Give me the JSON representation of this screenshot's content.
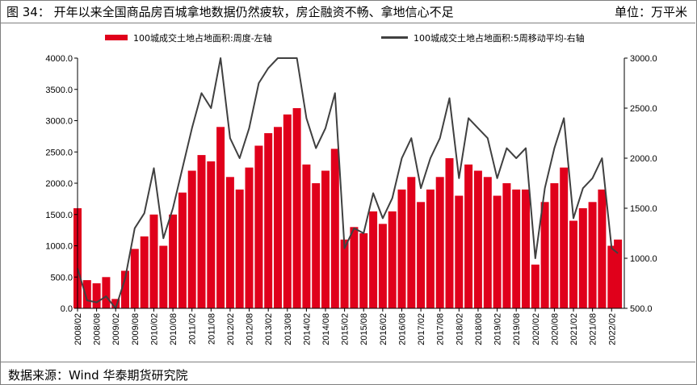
{
  "header": {
    "title": "图 34：  开年以来全国商品房百城拿地数据仍然疲软，房企融资不畅、拿地信心不足",
    "unit": "单位：万平米"
  },
  "footer": {
    "source": "数据来源：Wind   华泰期货研究院"
  },
  "colors": {
    "bar": "#e0001b",
    "line": "#404040"
  },
  "chart_data": {
    "type": "bar",
    "legend_position": "top",
    "grid": false,
    "x_ticks": [
      "2008/02",
      "2008/08",
      "2009/02",
      "2009/08",
      "2010/02",
      "2010/08",
      "2011/02",
      "2011/08",
      "2012/02",
      "2012/08",
      "2013/02",
      "2013/08",
      "2014/02",
      "2014/08",
      "2015/02",
      "2015/08",
      "2016/02",
      "2016/08",
      "2017/02",
      "2017/08",
      "2018/02",
      "2018/08",
      "2019/02",
      "2019/08",
      "2020/02",
      "2020/08",
      "2021/02",
      "2021/08",
      "2022/02"
    ],
    "y_left": {
      "ticks": [
        "0.0",
        "500.0",
        "1000.0",
        "1500.0",
        "2000.0",
        "2500.0",
        "3000.0",
        "3500.0",
        "4000.0"
      ],
      "ylim": [
        0,
        4000
      ]
    },
    "y_right": {
      "ticks": [
        "500.0",
        "1000.0",
        "1500.0",
        "2000.0",
        "2500.0",
        "3000.0"
      ],
      "ylim": [
        500,
        3000
      ]
    },
    "series": [
      {
        "name": "100城成交土地占地面积:周度-左轴",
        "type": "bar",
        "axis": "left",
        "x": [
          "2008/02",
          "2008/05",
          "2008/08",
          "2008/11",
          "2009/02",
          "2009/05",
          "2009/08",
          "2009/11",
          "2010/02",
          "2010/05",
          "2010/08",
          "2010/11",
          "2011/02",
          "2011/05",
          "2011/08",
          "2011/11",
          "2012/02",
          "2012/05",
          "2012/08",
          "2012/11",
          "2013/02",
          "2013/05",
          "2013/08",
          "2013/11",
          "2014/02",
          "2014/05",
          "2014/08",
          "2014/11",
          "2015/02",
          "2015/05",
          "2015/08",
          "2015/11",
          "2016/02",
          "2016/05",
          "2016/08",
          "2016/11",
          "2017/02",
          "2017/05",
          "2017/08",
          "2017/11",
          "2018/02",
          "2018/05",
          "2018/08",
          "2018/11",
          "2019/02",
          "2019/05",
          "2019/08",
          "2019/11",
          "2020/02",
          "2020/05",
          "2020/08",
          "2020/11",
          "2021/02",
          "2021/05",
          "2021/08",
          "2021/11",
          "2022/02",
          "2022/04"
        ],
        "values": [
          1600,
          450,
          400,
          500,
          150,
          600,
          950,
          1150,
          1500,
          1000,
          1500,
          1850,
          2200,
          2450,
          2350,
          2900,
          2100,
          1900,
          2250,
          2600,
          2800,
          2900,
          3100,
          3200,
          2300,
          2000,
          2200,
          2550,
          1100,
          1300,
          1200,
          1550,
          1350,
          1550,
          1900,
          2100,
          1700,
          1900,
          2100,
          2400,
          1800,
          2300,
          2200,
          2100,
          1800,
          2000,
          1900,
          1900,
          700,
          1700,
          2000,
          2250,
          1400,
          1600,
          1700,
          1900,
          1000,
          1100
        ]
      },
      {
        "name": "100城成交土地占地面积:5周移动平均-右轴",
        "type": "line",
        "axis": "right",
        "x": [
          "2008/02",
          "2008/05",
          "2008/08",
          "2008/11",
          "2009/02",
          "2009/05",
          "2009/08",
          "2009/11",
          "2010/02",
          "2010/05",
          "2010/08",
          "2010/11",
          "2011/02",
          "2011/05",
          "2011/08",
          "2011/11",
          "2012/02",
          "2012/05",
          "2012/08",
          "2012/11",
          "2013/02",
          "2013/05",
          "2013/08",
          "2013/11",
          "2014/02",
          "2014/05",
          "2014/08",
          "2014/11",
          "2015/02",
          "2015/05",
          "2015/08",
          "2015/11",
          "2016/02",
          "2016/05",
          "2016/08",
          "2016/11",
          "2017/02",
          "2017/05",
          "2017/08",
          "2017/11",
          "2018/02",
          "2018/05",
          "2018/08",
          "2018/11",
          "2019/02",
          "2019/05",
          "2019/08",
          "2019/11",
          "2020/02",
          "2020/05",
          "2020/08",
          "2020/11",
          "2021/02",
          "2021/05",
          "2021/08",
          "2021/11",
          "2022/02",
          "2022/04"
        ],
        "values": [
          900,
          580,
          560,
          620,
          500,
          800,
          1300,
          1450,
          1900,
          1200,
          1500,
          1900,
          2300,
          2650,
          2500,
          3000,
          2200,
          2000,
          2300,
          2750,
          2900,
          3000,
          3000,
          3000,
          2400,
          2100,
          2300,
          2650,
          1100,
          1300,
          1250,
          1650,
          1400,
          1600,
          2000,
          2200,
          1700,
          2000,
          2200,
          2600,
          1800,
          2400,
          2300,
          2200,
          1800,
          2100,
          2000,
          2100,
          1000,
          1700,
          2100,
          2400,
          1400,
          1700,
          1800,
          2000,
          1100,
          1050
        ]
      }
    ]
  }
}
